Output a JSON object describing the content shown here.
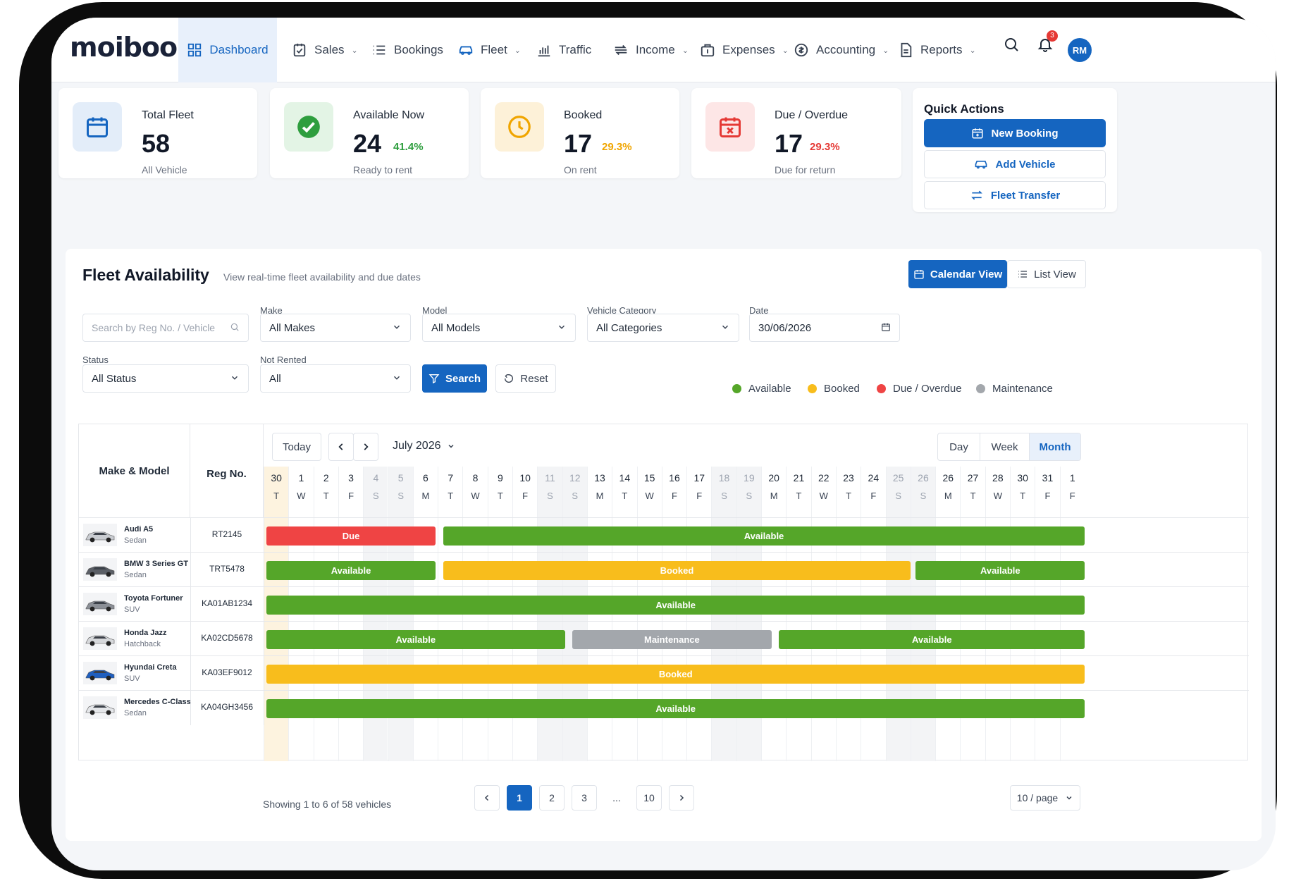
{
  "app": {
    "logo": "moiboo"
  },
  "nav": {
    "items": [
      {
        "label": "Dashboard",
        "icon": "dashboard-grid-icon"
      },
      {
        "label": "Sales",
        "icon": "sales-icon"
      },
      {
        "label": "Bookings",
        "icon": "list-icon"
      },
      {
        "label": "Fleet",
        "icon": "car-icon"
      },
      {
        "label": "Traffic",
        "icon": "bar-chart-icon"
      },
      {
        "label": "Income",
        "icon": "income-icon"
      },
      {
        "label": "Expenses",
        "icon": "wallet-icon"
      },
      {
        "label": "Accounting",
        "icon": "dollar-circle-icon"
      },
      {
        "label": "Reports",
        "icon": "report-icon"
      }
    ],
    "notification_count": "3",
    "avatar_initials": "RM"
  },
  "stats": [
    {
      "title": "Total Fleet",
      "value": "58",
      "pct": "",
      "sub": "All Vehicle",
      "color": "#1565c0"
    },
    {
      "title": "Available Now",
      "value": "24",
      "pct": "41.4%",
      "sub": "Ready to rent",
      "color": "#2e9e3e"
    },
    {
      "title": "Booked",
      "value": "17",
      "pct": "29.3%",
      "sub": "On rent",
      "color": "#f0a500"
    },
    {
      "title": "Due / Overdue",
      "value": "17",
      "pct": "29.3%",
      "sub": "Due for return",
      "color": "#e53935"
    }
  ],
  "quick_actions": {
    "title": "Quick Actions",
    "new_booking": "New Booking",
    "add_vehicle": "Add Vehicle",
    "fleet_transfer": "Fleet Transfer"
  },
  "fleet": {
    "title": "Fleet Availability",
    "subtitle": "View real-time fleet availability and due dates",
    "calendar_view": "Calendar View",
    "list_view": "List View"
  },
  "filters": {
    "search_placeholder": "Search by Reg No. / Vehicle",
    "make_label": "Make",
    "make_value": "All Makes",
    "model_label": "Model",
    "model_value": "All Models",
    "category_label": "Vehicle Category",
    "category_value": "All Categories",
    "date_label": "Date",
    "date_value": "30/06/2026",
    "status_label": "Status",
    "status_value": "All Status",
    "not_rented_label": "Not Rented",
    "not_rented_value": "All",
    "search_btn": "Search",
    "reset_btn": "Reset"
  },
  "legend": [
    {
      "label": "Available",
      "color": "#55a629"
    },
    {
      "label": "Booked",
      "color": "#f8bd1c"
    },
    {
      "label": "Due / Overdue",
      "color": "#ef4444"
    },
    {
      "label": "Maintenance",
      "color": "#a3a7ac"
    }
  ],
  "calendar": {
    "col_make": "Make & Model",
    "col_reg": "Reg No.",
    "today": "Today",
    "month": "July 2026",
    "views": [
      "Day",
      "Week",
      "Month"
    ],
    "active_view": "Month",
    "days": [
      {
        "d": "30",
        "w": "T"
      },
      {
        "d": "1",
        "w": "W"
      },
      {
        "d": "2",
        "w": "T"
      },
      {
        "d": "3",
        "w": "F"
      },
      {
        "d": "4",
        "w": "S"
      },
      {
        "d": "5",
        "w": "S"
      },
      {
        "d": "6",
        "w": "M"
      },
      {
        "d": "7",
        "w": "T"
      },
      {
        "d": "8",
        "w": "W"
      },
      {
        "d": "9",
        "w": "T"
      },
      {
        "d": "10",
        "w": "F"
      },
      {
        "d": "11",
        "w": "S"
      },
      {
        "d": "12",
        "w": "S"
      },
      {
        "d": "13",
        "w": "M"
      },
      {
        "d": "14",
        "w": "T"
      },
      {
        "d": "15",
        "w": "W"
      },
      {
        "d": "16",
        "w": "F"
      },
      {
        "d": "17",
        "w": "F"
      },
      {
        "d": "18",
        "w": "S"
      },
      {
        "d": "19",
        "w": "S"
      },
      {
        "d": "20",
        "w": "M"
      },
      {
        "d": "21",
        "w": "T"
      },
      {
        "d": "22",
        "w": "W"
      },
      {
        "d": "23",
        "w": "T"
      },
      {
        "d": "24",
        "w": "F"
      },
      {
        "d": "25",
        "w": "S"
      },
      {
        "d": "26",
        "w": "S"
      },
      {
        "d": "26",
        "w": "M"
      },
      {
        "d": "27",
        "w": "T"
      },
      {
        "d": "28",
        "w": "W"
      },
      {
        "d": "30",
        "w": "T"
      },
      {
        "d": "31",
        "w": "F"
      },
      {
        "d": "1",
        "w": "F"
      }
    ],
    "vehicles": [
      {
        "make": "Audi A5",
        "type": "Sedan",
        "reg": "RT2145",
        "car_color": "#c9ccd1",
        "bars": [
          {
            "status": "Due",
            "from": 0,
            "to": 6.8
          },
          {
            "status": "Available",
            "from": 7.1,
            "to": 32.9
          }
        ]
      },
      {
        "make": "BMW 3 Series GT",
        "type": "Sedan",
        "reg": "TRT5478",
        "car_color": "#5b5f66",
        "bars": [
          {
            "status": "Available",
            "from": 0,
            "to": 6.8
          },
          {
            "status": "Booked",
            "from": 7.1,
            "to": 25.9
          },
          {
            "status": "Available",
            "from": 26.1,
            "to": 32.9
          }
        ]
      },
      {
        "make": "Toyota Fortuner",
        "type": "SUV",
        "reg": "KA01AB1234",
        "car_color": "#8b8f96",
        "bars": [
          {
            "status": "Available",
            "from": 0,
            "to": 32.9
          }
        ]
      },
      {
        "make": "Honda Jazz",
        "type": "Hatchback",
        "reg": "KA02CD5678",
        "car_color": "#d6d8db",
        "bars": [
          {
            "status": "Available",
            "from": 0,
            "to": 12.0
          },
          {
            "status": "Maintenance",
            "from": 12.3,
            "to": 20.3
          },
          {
            "status": "Available",
            "from": 20.6,
            "to": 32.9
          }
        ]
      },
      {
        "make": "Hyundai Creta",
        "type": "SUV",
        "reg": "KA03EF9012",
        "car_color": "#1f5fbf",
        "bars": [
          {
            "status": "Booked",
            "from": 0,
            "to": 32.9
          }
        ]
      },
      {
        "make": "Mercedes C-Class",
        "type": "Sedan",
        "reg": "KA04GH3456",
        "car_color": "#e4e6e9",
        "bars": [
          {
            "status": "Available",
            "from": 0,
            "to": 32.9
          }
        ]
      }
    ]
  },
  "pagination": {
    "showing": "Showing 1 to 6 of 58 vehicles",
    "pages": [
      "1",
      "2",
      "3",
      "...",
      "10"
    ],
    "per_page": "10 / page"
  }
}
